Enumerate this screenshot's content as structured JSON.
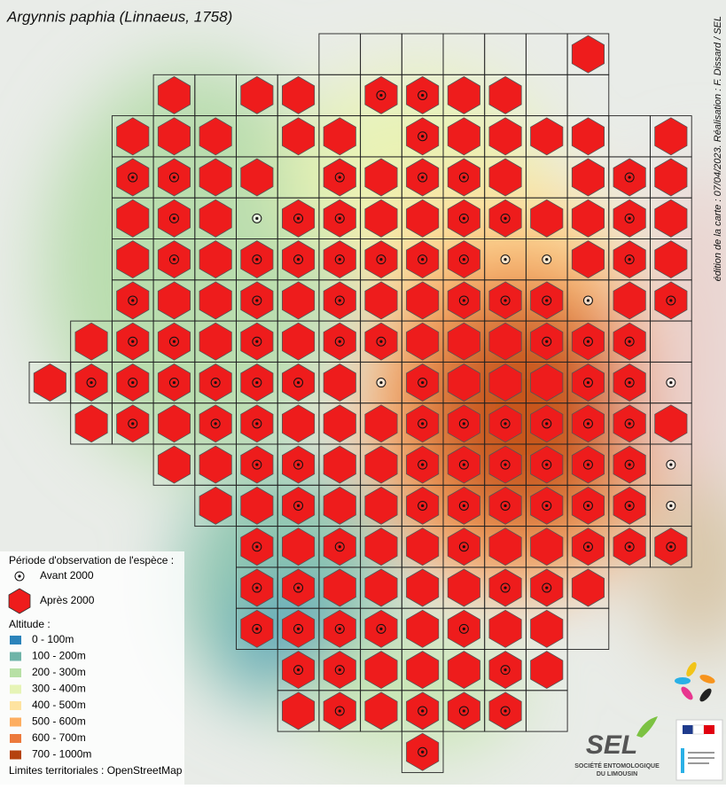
{
  "title": "Argynnis paphia (Linnaeus, 1758)",
  "credit": "édition de la carte : 07/04/2023. Réalisation : F. Dissard / SEL",
  "legend": {
    "period_title": "Période d'observation de l'espèce :",
    "before": "Avant 2000",
    "after": "Après 2000",
    "altitude_title": "Altitude :",
    "altitude_classes": [
      {
        "label": "0 - 100m",
        "color": "#2b83ba"
      },
      {
        "label": "100 - 200m",
        "color": "#6fb4a8"
      },
      {
        "label": "200 - 300m",
        "color": "#b7e0a5"
      },
      {
        "label": "300 - 400m",
        "color": "#e6f4b6"
      },
      {
        "label": "400 - 500m",
        "color": "#fee3a0"
      },
      {
        "label": "500 - 600m",
        "color": "#fdae61"
      },
      {
        "label": "600 - 700m",
        "color": "#ec7a3c"
      },
      {
        "label": "700 - 1000m",
        "color": "#b5430f"
      }
    ],
    "limits": "Limites territoriales : OpenStreetMap"
  },
  "logo": {
    "name": "SEL",
    "line1": "SOCIÉTÉ ENTOMOLOGIQUE",
    "line2": "DU LIMOUSIN"
  }
}
